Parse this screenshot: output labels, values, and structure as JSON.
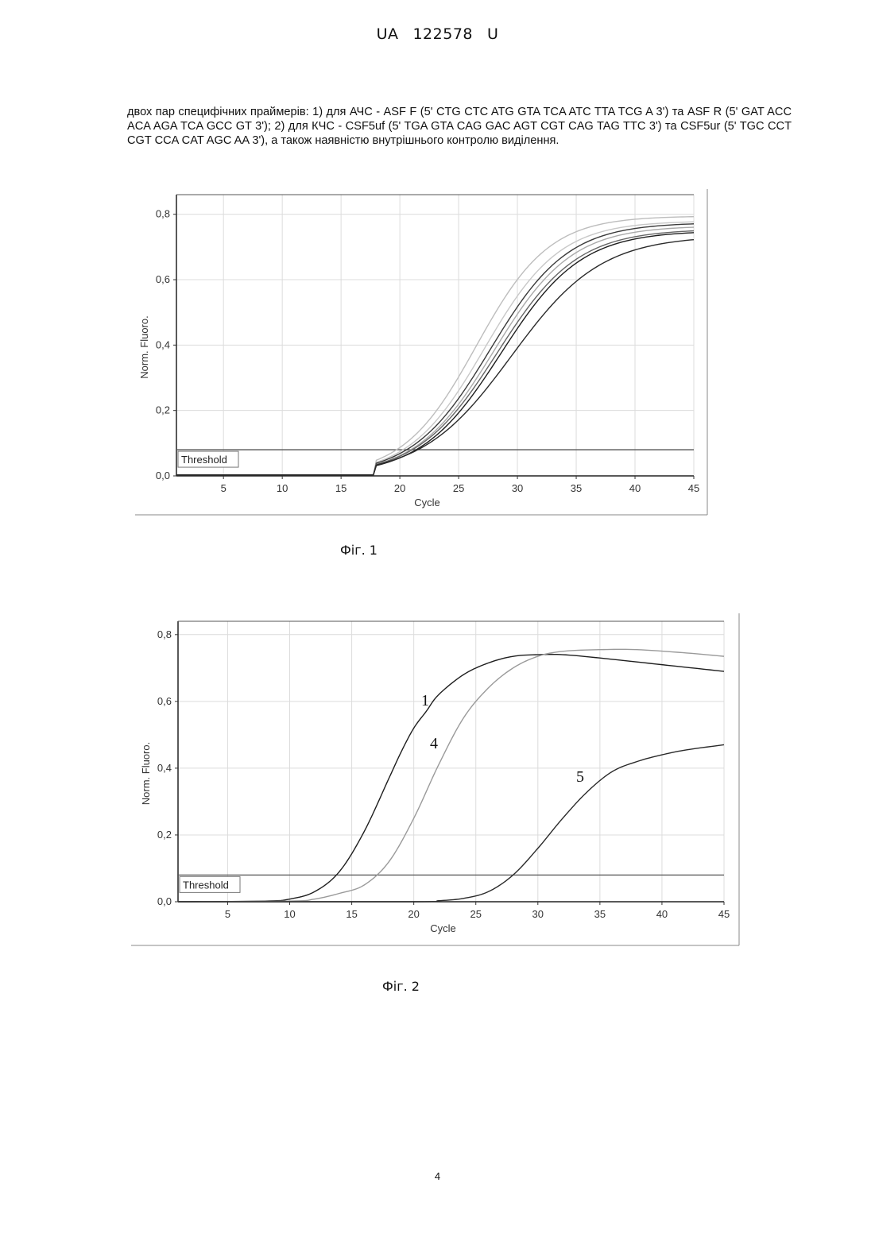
{
  "header": {
    "country": "UA",
    "number": "122578",
    "kind": "U"
  },
  "paragraph": "двох пар специфічних праймерів: 1) для АЧС - ASF F (5' CTG CTC ATG GTA TCA ATC TTA TCG A 3') та ASF R (5' GAT ACC ACA AGA TCA GCC GT 3'); 2) для КЧС - CSF5uf (5' TGA GTA CAG GAC AGT CGT CAG TAG TTC 3') та CSF5ur (5' TGC CCT CGT CCA CAT AGC AA 3'), а також наявністю внутрішнього контролю виділення.",
  "figures": [
    {
      "caption": "Фіг. 1"
    },
    {
      "caption": "Фіг. 2"
    }
  ],
  "page_number": "4",
  "chart_data": [
    {
      "type": "line",
      "title": "",
      "xlabel": "Cycle",
      "ylabel": "Norm. Fluoro.",
      "xlim": [
        1,
        45
      ],
      "ylim": [
        0,
        0.86
      ],
      "xticks": [
        "5",
        "10",
        "15",
        "20",
        "25",
        "30",
        "35",
        "40",
        "45"
      ],
      "yticks": [
        "0,0",
        "0,2",
        "0,4",
        "0,6",
        "0,8"
      ],
      "threshold": {
        "label": "Threshold",
        "value": 0.08
      },
      "grid": true,
      "line_color": "#333333",
      "series": [
        {
          "midpoint": 26.5,
          "plateau": 0.795,
          "slope": 3.1,
          "color": "#bdbdbd"
        },
        {
          "midpoint": 27.2,
          "plateau": 0.78,
          "slope": 3.2,
          "color": "#c8c8c8"
        },
        {
          "midpoint": 27.7,
          "plateau": 0.775,
          "slope": 3.3,
          "color": "#3a3a3a"
        },
        {
          "midpoint": 28.0,
          "plateau": 0.765,
          "slope": 3.3,
          "color": "#aaaaaa"
        },
        {
          "midpoint": 28.3,
          "plateau": 0.755,
          "slope": 3.4,
          "color": "#666666"
        },
        {
          "midpoint": 28.6,
          "plateau": 0.75,
          "slope": 3.4,
          "color": "#1e1e1e"
        },
        {
          "midpoint": 29.5,
          "plateau": 0.735,
          "slope": 3.8,
          "color": "#2a2a2a"
        }
      ]
    },
    {
      "type": "line",
      "title": "",
      "xlabel": "Cycle",
      "ylabel": "Norm. Fluoro.",
      "xlim": [
        1,
        45
      ],
      "ylim": [
        0,
        0.84
      ],
      "xticks": [
        "5",
        "10",
        "15",
        "20",
        "25",
        "30",
        "35",
        "40",
        "45"
      ],
      "yticks": [
        "0,0",
        "0,2",
        "0,4",
        "0,6",
        "0,8"
      ],
      "threshold": {
        "label": "Threshold",
        "value": 0.08
      },
      "grid": true,
      "line_color": "#333333",
      "series": [
        {
          "name": "1",
          "x": [
            1,
            8,
            10,
            12,
            14,
            16,
            18,
            19,
            20,
            21,
            22,
            24,
            26,
            28,
            30,
            32,
            35,
            40,
            45
          ],
          "y": [
            0.0,
            0.002,
            0.008,
            0.03,
            0.09,
            0.21,
            0.37,
            0.45,
            0.52,
            0.57,
            0.62,
            0.68,
            0.715,
            0.735,
            0.74,
            0.74,
            0.73,
            0.71,
            0.69
          ],
          "color": "#1e1e1e"
        },
        {
          "name": "4",
          "x": [
            1,
            10,
            12,
            14,
            16,
            18,
            20,
            22,
            24,
            26,
            28,
            30,
            32,
            35,
            38,
            42,
            45
          ],
          "y": [
            0.0,
            0.002,
            0.008,
            0.025,
            0.05,
            0.12,
            0.25,
            0.41,
            0.55,
            0.64,
            0.7,
            0.735,
            0.75,
            0.755,
            0.755,
            0.745,
            0.735
          ],
          "color": "#9a9a9a"
        },
        {
          "name": "5",
          "x": [
            1,
            20,
            22,
            24,
            26,
            28,
            30,
            32,
            34,
            36,
            38,
            40,
            42,
            45
          ],
          "y": [
            0.0,
            0.0,
            0.003,
            0.01,
            0.03,
            0.08,
            0.16,
            0.25,
            0.33,
            0.39,
            0.42,
            0.44,
            0.455,
            0.47
          ],
          "color": "#2a2a2a"
        }
      ]
    }
  ]
}
